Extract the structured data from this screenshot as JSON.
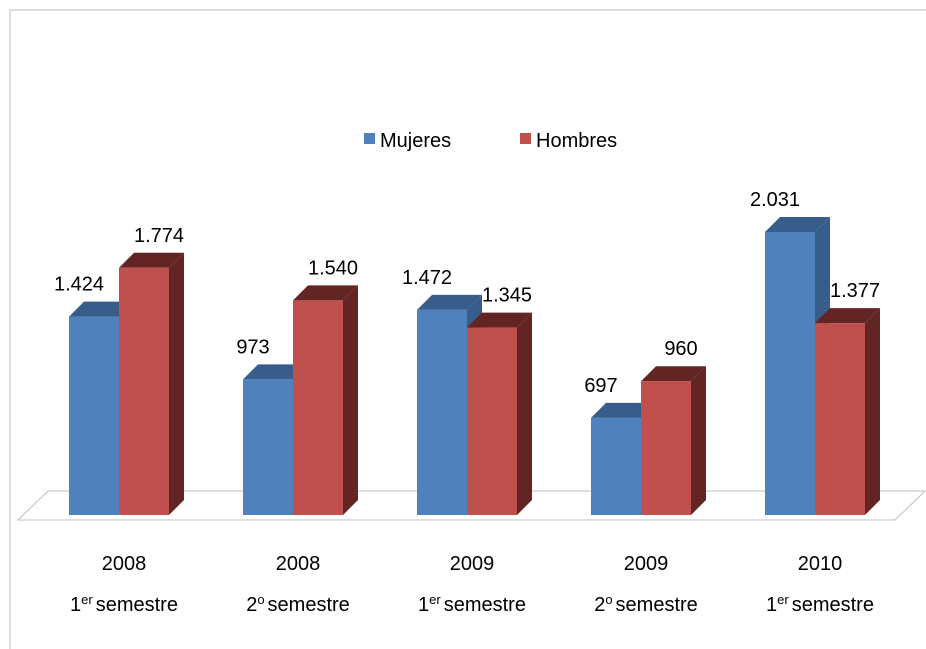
{
  "chart_data": {
    "type": "bar3d",
    "categories": [
      {
        "year": "2008",
        "ordinal": "1",
        "suffix": "er",
        "word": "semestre"
      },
      {
        "year": "2008",
        "ordinal": "2",
        "suffix": "o",
        "word": "semestre"
      },
      {
        "year": "2009",
        "ordinal": "1",
        "suffix": "er",
        "word": "semestre"
      },
      {
        "year": "2009",
        "ordinal": "2",
        "suffix": "o",
        "word": "semestre"
      },
      {
        "year": "2010",
        "ordinal": "1",
        "suffix": "er",
        "word": "semestre"
      }
    ],
    "series": [
      {
        "name": "Mujeres",
        "color": "#4f81bd",
        "side": "#385d8a",
        "values": [
          1424,
          973,
          1472,
          697,
          2031
        ],
        "value_labels": [
          "1.424",
          "973",
          "1.472",
          "697",
          "2.031"
        ]
      },
      {
        "name": "Hombres",
        "color": "#c0504d",
        "side": "#632523",
        "values": [
          1774,
          1540,
          1345,
          960,
          1377
        ],
        "value_labels": [
          "1.774",
          "1.540",
          "1.345",
          "960",
          "1.377"
        ]
      }
    ],
    "legend": "top"
  }
}
